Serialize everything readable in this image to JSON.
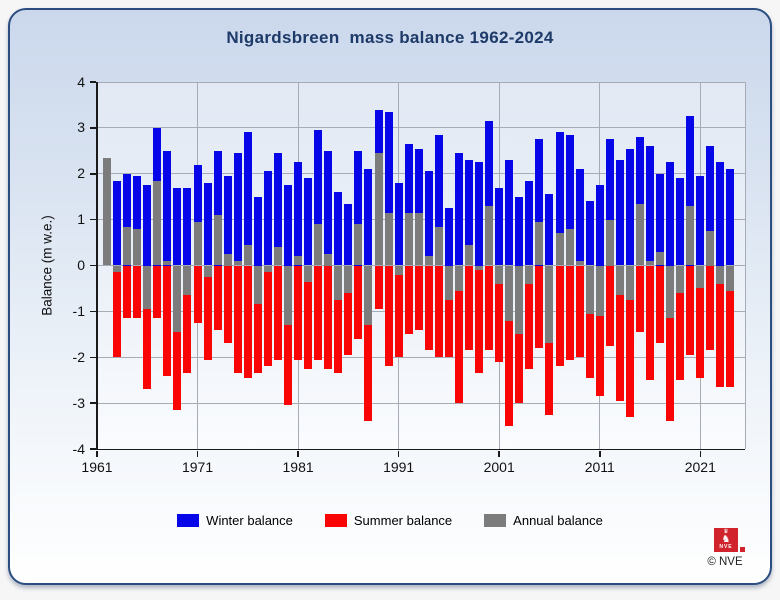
{
  "title": "Nigardsbreen  mass balance 1962-2024",
  "chart_data": {
    "type": "bar",
    "title": "Nigardsbreen  mass balance 1962-2024",
    "xlabel": "",
    "ylabel": "Balance (m w.e.)",
    "ylim": [
      -4,
      4
    ],
    "yticks": [
      4,
      3,
      2,
      1,
      0,
      -1,
      -2,
      -3,
      -4
    ],
    "xticks": [
      1961,
      1971,
      1981,
      1991,
      2001,
      2011,
      2021
    ],
    "grid": true,
    "legend_position": "bottom",
    "units": "m w.e.",
    "series": [
      {
        "name": "Winter balance",
        "color": "#0606e8",
        "key": "winter"
      },
      {
        "name": "Summer balance",
        "color": "#f90505",
        "key": "summer"
      },
      {
        "name": "Annual balance",
        "color": "#7c7c7c",
        "key": "annual"
      }
    ],
    "years": [
      1962,
      1963,
      1964,
      1965,
      1966,
      1967,
      1968,
      1969,
      1970,
      1971,
      1972,
      1973,
      1974,
      1975,
      1976,
      1977,
      1978,
      1979,
      1980,
      1981,
      1982,
      1983,
      1984,
      1985,
      1986,
      1987,
      1988,
      1989,
      1990,
      1991,
      1992,
      1993,
      1994,
      1995,
      1996,
      1997,
      1998,
      1999,
      2000,
      2001,
      2002,
      2003,
      2004,
      2005,
      2006,
      2007,
      2008,
      2009,
      2010,
      2011,
      2012,
      2013,
      2014,
      2015,
      2016,
      2017,
      2018,
      2019,
      2020,
      2021,
      2022,
      2023,
      2024
    ],
    "winter": [
      null,
      1.85,
      2.0,
      1.95,
      1.75,
      3.0,
      2.5,
      1.7,
      1.7,
      2.2,
      1.8,
      2.5,
      1.95,
      2.45,
      2.9,
      1.5,
      2.05,
      2.45,
      1.75,
      2.25,
      1.9,
      2.95,
      2.5,
      1.6,
      1.35,
      2.5,
      2.1,
      3.4,
      3.35,
      1.8,
      2.65,
      2.55,
      2.05,
      2.85,
      1.25,
      2.45,
      2.3,
      2.25,
      3.15,
      1.7,
      2.3,
      1.5,
      1.85,
      2.75,
      1.55,
      2.9,
      2.85,
      2.1,
      1.4,
      1.75,
      2.75,
      2.3,
      2.55,
      2.8,
      2.6,
      2.0,
      2.25,
      1.9,
      3.25,
      1.95,
      2.6,
      2.25,
      2.1
    ],
    "summer": [
      null,
      -2.0,
      -1.15,
      -1.15,
      -2.7,
      -1.15,
      -2.4,
      -3.15,
      -2.35,
      -1.25,
      -2.05,
      -1.4,
      -1.7,
      -2.35,
      -2.45,
      -2.35,
      -2.2,
      -2.05,
      -3.05,
      -2.05,
      -2.25,
      -2.05,
      -2.25,
      -2.35,
      -1.95,
      -1.6,
      -3.4,
      -0.95,
      -2.2,
      -2.0,
      -1.5,
      -1.4,
      -1.85,
      -2.0,
      -2.0,
      -3.0,
      -1.85,
      -2.35,
      -1.85,
      -2.1,
      -3.5,
      -3.0,
      -2.25,
      -1.8,
      -3.25,
      -2.2,
      -2.05,
      -2.0,
      -2.45,
      -2.85,
      -1.75,
      -2.95,
      -3.3,
      -1.45,
      -2.5,
      -1.7,
      -3.4,
      -2.5,
      -1.95,
      -2.45,
      -1.85,
      -2.65,
      -2.65
    ],
    "annual": [
      2.35,
      -0.15,
      0.85,
      0.8,
      -0.95,
      1.85,
      0.1,
      -1.45,
      -0.65,
      0.95,
      -0.25,
      1.1,
      0.25,
      0.1,
      0.45,
      -0.85,
      -0.15,
      0.4,
      -1.3,
      0.2,
      -0.35,
      0.9,
      0.25,
      -0.75,
      -0.6,
      0.9,
      -1.3,
      2.45,
      1.15,
      -0.2,
      1.15,
      1.15,
      0.2,
      0.85,
      -0.75,
      -0.55,
      0.45,
      -0.1,
      1.3,
      -0.4,
      -1.2,
      -1.5,
      -0.4,
      0.95,
      -1.7,
      0.7,
      0.8,
      0.1,
      -1.05,
      -1.1,
      1.0,
      -0.65,
      -0.75,
      1.35,
      0.1,
      0.3,
      -1.15,
      -0.6,
      1.3,
      -0.5,
      0.75,
      -0.4,
      -0.55
    ]
  },
  "footer": {
    "logo_text": "NVE",
    "copyright": "© NVE"
  }
}
